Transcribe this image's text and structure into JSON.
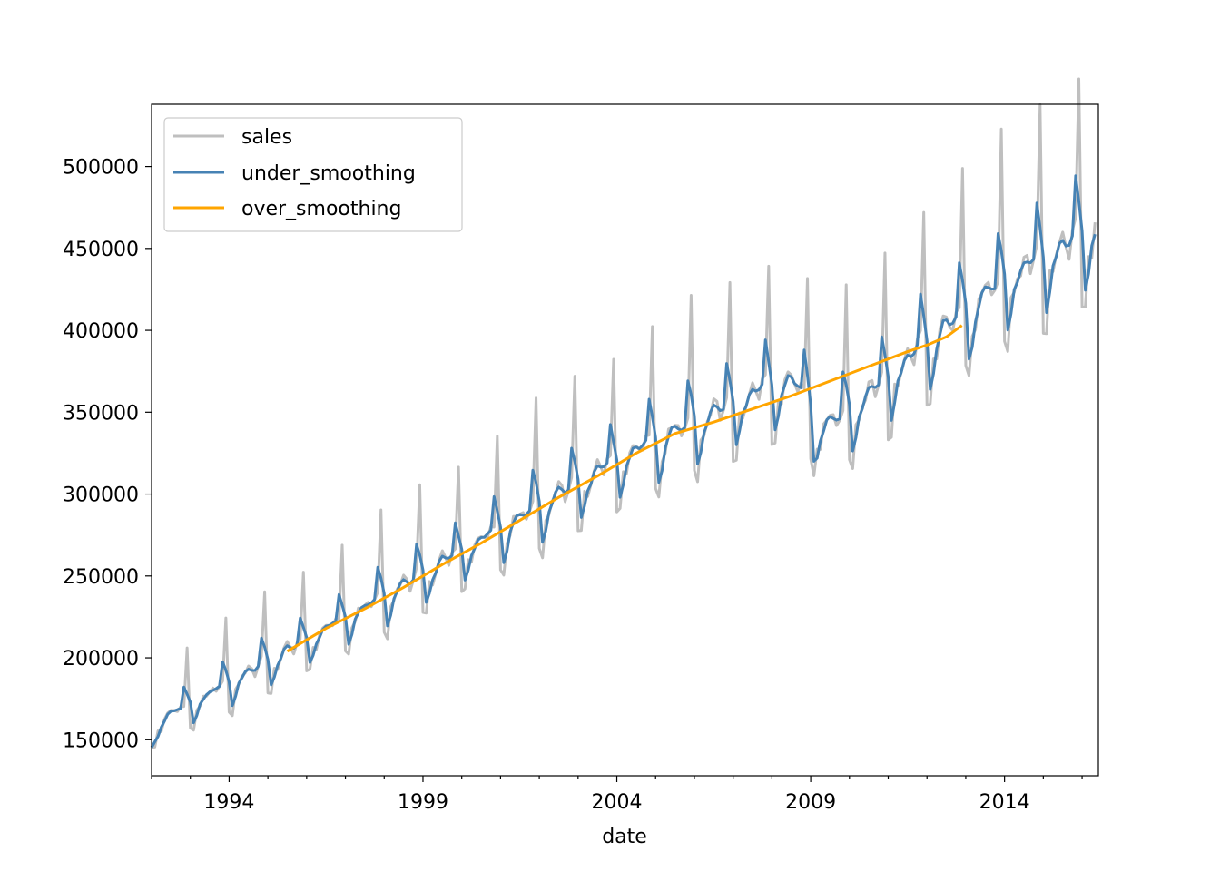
{
  "chart_data": {
    "type": "line",
    "title": "",
    "xlabel": "date",
    "ylabel": "",
    "xlim": [
      1992.0,
      2016.42
    ],
    "ylim": [
      128000,
      538000
    ],
    "x_ticks_major": [
      1994,
      1999,
      2004,
      2009,
      2014
    ],
    "x_tick_labels": [
      "1994",
      "1999",
      "2004",
      "2009",
      "2014"
    ],
    "y_ticks": [
      150000,
      200000,
      250000,
      300000,
      350000,
      400000,
      450000,
      500000
    ],
    "y_tick_labels": [
      "150000",
      "200000",
      "250000",
      "300000",
      "350000",
      "400000",
      "450000",
      "500000"
    ],
    "grid": false,
    "legend": "top-left",
    "seasonal_pattern": [
      0.92,
      0.91,
      0.98,
      0.98,
      1.01,
      1.02,
      1.03,
      1.02,
      1.0,
      1.02,
      1.03,
      1.23
    ],
    "trend_anchors": [
      [
        1992.0,
        157000
      ],
      [
        1995.0,
        195000
      ],
      [
        1996.0,
        208000
      ],
      [
        1999.0,
        248000
      ],
      [
        2004.5,
        323000
      ],
      [
        2007.0,
        350000
      ],
      [
        2008.0,
        362000
      ],
      [
        2008.6,
        365000
      ],
      [
        2009.25,
        335000
      ],
      [
        2010.0,
        346000
      ],
      [
        2011.0,
        366000
      ],
      [
        2012.0,
        388000
      ],
      [
        2014.0,
        425000
      ],
      [
        2016.0,
        452000
      ],
      [
        2016.42,
        462000
      ]
    ],
    "series": [
      {
        "name": "sales",
        "color": "#bfbfbf",
        "x_start": 1992.0,
        "frequency": "monthly",
        "count": 293,
        "values": []
      },
      {
        "name": "under_smoothing",
        "color": "#4682b4",
        "x_start": 1992.0,
        "frequency": "monthly",
        "values": []
      },
      {
        "name": "over_smoothing",
        "color": "#ffa500",
        "x": [
          1995.5,
          1996.5,
          1997.5,
          1998.5,
          1999.5,
          2000.5,
          2001.5,
          2002.5,
          2003.5,
          2004.5,
          2005.5,
          2006.5,
          2007.5,
          2008.5,
          2009.5,
          2010.5,
          2011.5,
          2012.0,
          2012.5,
          2012.9
        ],
        "values": [
          204000,
          218000,
          230000,
          243000,
          257000,
          270000,
          284000,
          298000,
          311000,
          325000,
          337000,
          344000,
          352000,
          360000,
          369000,
          378000,
          387000,
          391000,
          396000,
          403000
        ]
      }
    ]
  }
}
